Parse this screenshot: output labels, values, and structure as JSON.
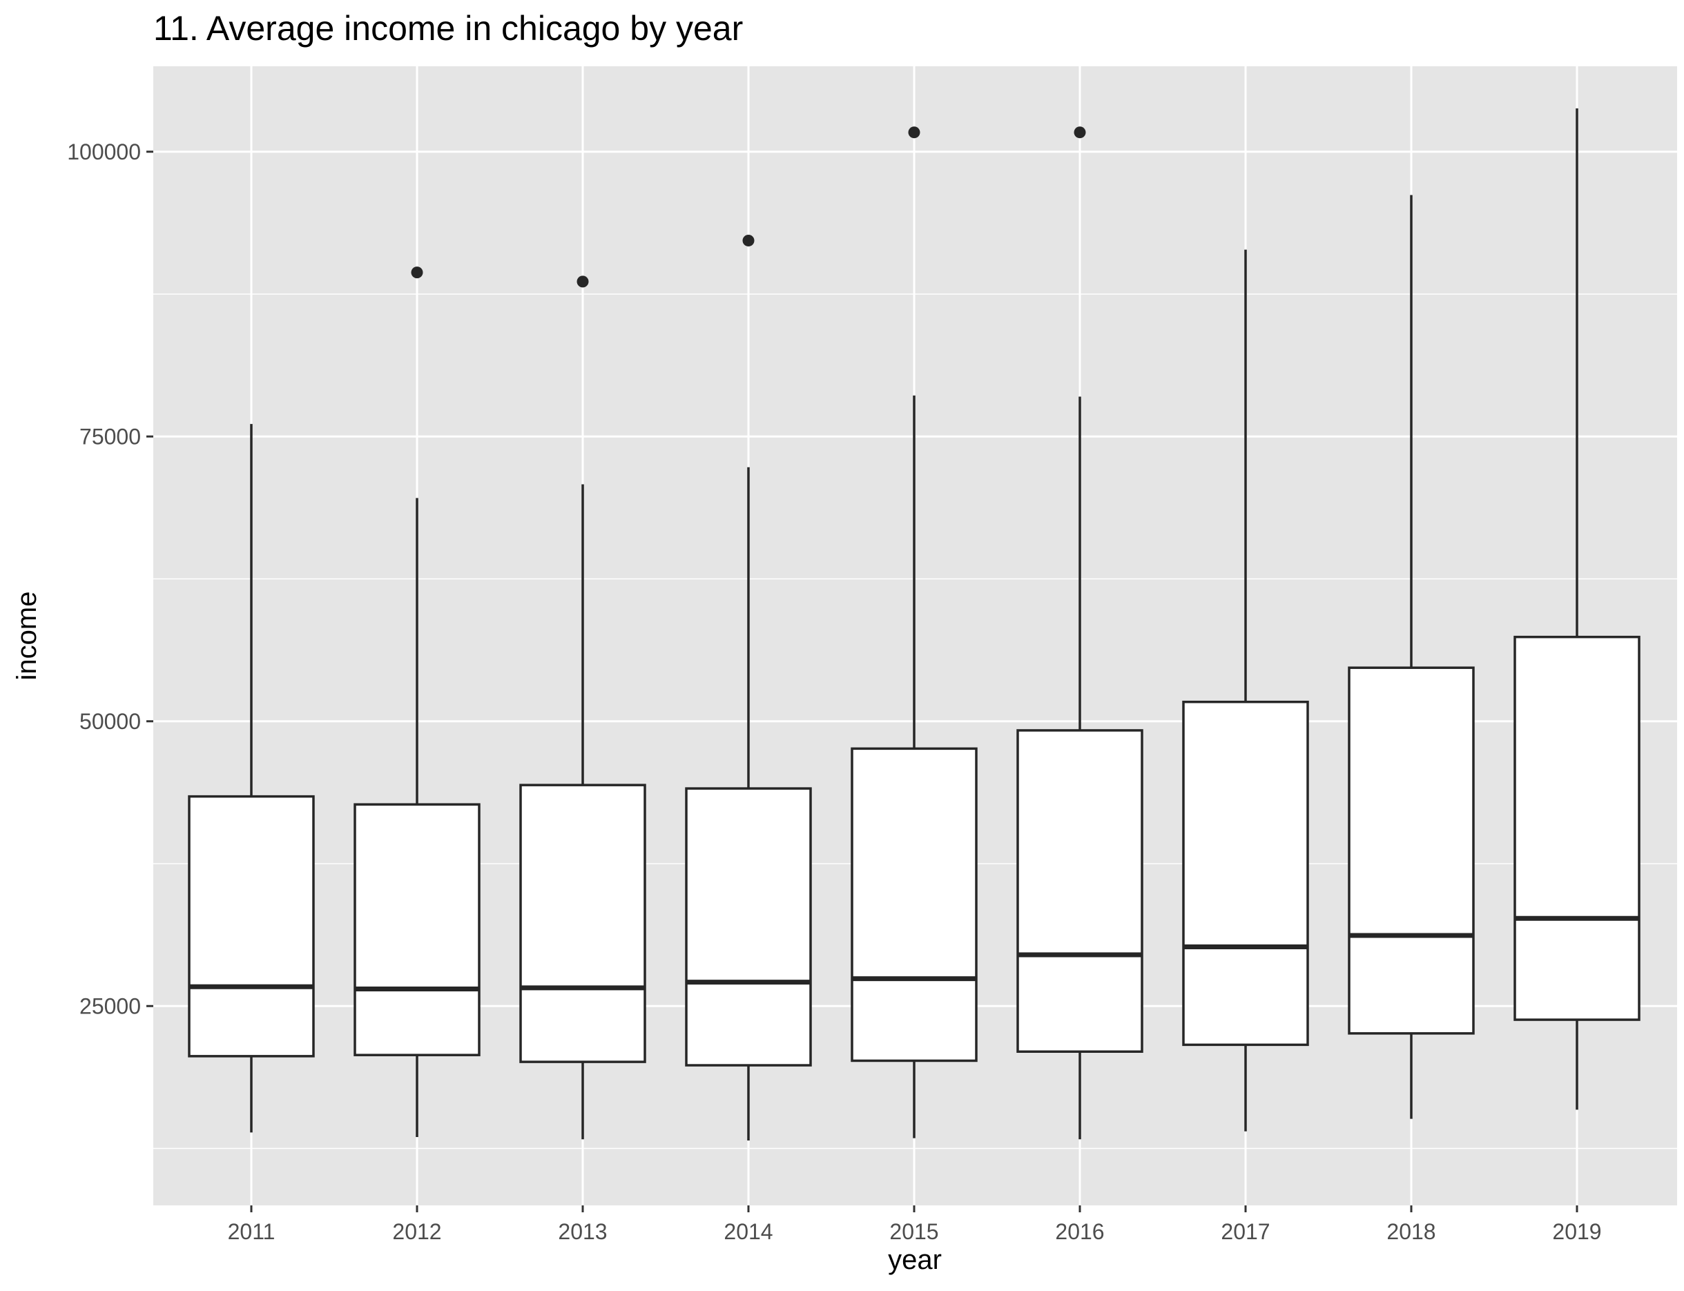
{
  "chart_data": {
    "type": "boxplot",
    "title": "11. Average income in chicago by year",
    "xlabel": "year",
    "ylabel": "income",
    "ylim": [
      7500,
      107500
    ],
    "yticks": [
      25000,
      50000,
      75000,
      100000
    ],
    "grid": true,
    "categories": [
      "2011",
      "2012",
      "2013",
      "2014",
      "2015",
      "2016",
      "2017",
      "2018",
      "2019"
    ],
    "boxes": [
      {
        "x": "2011",
        "whisker_low": 13900,
        "q1": 20600,
        "median": 26700,
        "q3": 43400,
        "whisker_high": 76100,
        "outliers": []
      },
      {
        "x": "2012",
        "whisker_low": 13500,
        "q1": 20700,
        "median": 26500,
        "q3": 42700,
        "whisker_high": 69600,
        "outliers": [
          89400
        ]
      },
      {
        "x": "2013",
        "whisker_low": 13300,
        "q1": 20100,
        "median": 26600,
        "q3": 44400,
        "whisker_high": 70800,
        "outliers": [
          88600
        ]
      },
      {
        "x": "2014",
        "whisker_low": 13200,
        "q1": 19800,
        "median": 27100,
        "q3": 44100,
        "whisker_high": 72300,
        "outliers": [
          92200
        ]
      },
      {
        "x": "2015",
        "whisker_low": 13400,
        "q1": 20200,
        "median": 27400,
        "q3": 47600,
        "whisker_high": 78600,
        "outliers": [
          101700
        ]
      },
      {
        "x": "2016",
        "whisker_low": 13300,
        "q1": 21000,
        "median": 29500,
        "q3": 49200,
        "whisker_high": 78500,
        "outliers": [
          101700
        ]
      },
      {
        "x": "2017",
        "whisker_low": 14000,
        "q1": 21600,
        "median": 30200,
        "q3": 51700,
        "whisker_high": 91400,
        "outliers": []
      },
      {
        "x": "2018",
        "whisker_low": 15100,
        "q1": 22600,
        "median": 31200,
        "q3": 54700,
        "whisker_high": 96200,
        "outliers": []
      },
      {
        "x": "2019",
        "whisker_low": 15900,
        "q1": 23800,
        "median": 32700,
        "q3": 57400,
        "whisker_high": 103800,
        "outliers": []
      }
    ]
  },
  "colors": {
    "panel_background": "#e5e5e5",
    "grid_line": "#ffffff",
    "box_fill": "#ffffff",
    "box_stroke": "#262626",
    "tick_text": "#4d4d4d",
    "text": "#000000"
  }
}
